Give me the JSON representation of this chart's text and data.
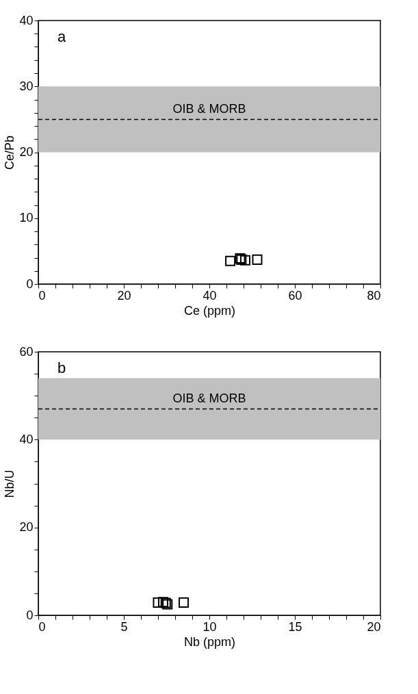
{
  "chart_data": [
    {
      "type": "scatter",
      "annotations": [
        "a"
      ],
      "xlabel": "Ce (ppm)",
      "ylabel": "Ce/Pb",
      "marker": "square",
      "grid": false,
      "series": [
        {
          "color": "#000000",
          "x": [
            44.9,
            47.2,
            47.5,
            48.4,
            51.2
          ],
          "values": [
            3.5,
            3.9,
            3.7,
            3.6,
            3.7
          ]
        }
      ],
      "xlim": [
        0,
        80
      ],
      "ylim": [
        0,
        40
      ],
      "xticks": [
        0,
        {
          "value": 4,
          "label": null
        },
        {
          "value": 8,
          "label": null
        },
        {
          "value": 12,
          "label": null
        },
        {
          "value": 16,
          "label": null
        },
        20,
        {
          "value": 24,
          "label": null
        },
        {
          "value": 28,
          "label": null
        },
        {
          "value": 32,
          "label": null
        },
        {
          "value": 36,
          "label": null
        },
        40,
        {
          "value": 44,
          "label": null
        },
        {
          "value": 48,
          "label": null
        },
        {
          "value": 52,
          "label": null
        },
        {
          "value": 56,
          "label": null
        },
        60,
        {
          "value": 64,
          "label": null
        },
        {
          "value": 68,
          "label": null
        },
        {
          "value": 72,
          "label": null
        },
        {
          "value": 76,
          "label": null
        },
        80
      ],
      "yticks": [
        0,
        {
          "value": 2,
          "label": null
        },
        {
          "value": 4,
          "label": null
        },
        {
          "value": 6,
          "label": null
        },
        {
          "value": 8,
          "label": null
        },
        10,
        {
          "value": 12,
          "label": null
        },
        {
          "value": 14,
          "label": null
        },
        {
          "value": 16,
          "label": null
        },
        {
          "value": 18,
          "label": null
        },
        20,
        {
          "value": 22,
          "label": null
        },
        {
          "value": 24,
          "label": null
        },
        {
          "value": 26,
          "label": null
        },
        {
          "value": 28,
          "label": null
        },
        30,
        {
          "value": 32,
          "label": null
        },
        {
          "value": 34,
          "label": null
        },
        {
          "value": 36,
          "label": null
        },
        {
          "value": 38,
          "label": null
        },
        40
      ],
      "bands": [
        {
          "axis": "y",
          "from": 20,
          "to": 30,
          "label": "OIB & MORB",
          "color": "#c0c0c0"
        }
      ],
      "ref_lines": [
        {
          "axis": "y",
          "value": 25,
          "color": "#000000",
          "line_style": "dashed"
        }
      ]
    },
    {
      "type": "scatter",
      "annotations": [
        "b"
      ],
      "xlabel": "Nb (ppm)",
      "ylabel": "Nb/U",
      "marker": "square",
      "grid": false,
      "series": [
        {
          "color": "#000000",
          "x": [
            7.0,
            7.3,
            7.45,
            7.55,
            8.5
          ],
          "values": [
            2.9,
            3.0,
            2.8,
            2.5,
            2.9
          ]
        }
      ],
      "xlim": [
        0,
        20
      ],
      "ylim": [
        0,
        60
      ],
      "xticks": [
        0,
        {
          "value": 1,
          "label": null
        },
        {
          "value": 2,
          "label": null
        },
        {
          "value": 3,
          "label": null
        },
        {
          "value": 4,
          "label": null
        },
        5,
        {
          "value": 6,
          "label": null
        },
        {
          "value": 7,
          "label": null
        },
        {
          "value": 8,
          "label": null
        },
        {
          "value": 9,
          "label": null
        },
        10,
        {
          "value": 11,
          "label": null
        },
        {
          "value": 12,
          "label": null
        },
        {
          "value": 13,
          "label": null
        },
        {
          "value": 14,
          "label": null
        },
        15,
        {
          "value": 16,
          "label": null
        },
        {
          "value": 17,
          "label": null
        },
        {
          "value": 18,
          "label": null
        },
        {
          "value": 19,
          "label": null
        },
        20
      ],
      "yticks": [
        0,
        {
          "value": 5,
          "label": null
        },
        {
          "value": 10,
          "label": null
        },
        {
          "value": 15,
          "label": null
        },
        20,
        {
          "value": 25,
          "label": null
        },
        {
          "value": 30,
          "label": null
        },
        {
          "value": 35,
          "label": null
        },
        40,
        {
          "value": 45,
          "label": null
        },
        {
          "value": 50,
          "label": null
        },
        {
          "value": 55,
          "label": null
        },
        60
      ],
      "bands": [
        {
          "axis": "y",
          "from": 40,
          "to": 54,
          "label": "OIB & MORB",
          "color": "#c0c0c0"
        }
      ],
      "ref_lines": [
        {
          "axis": "y",
          "value": 47,
          "color": "#000000",
          "line_style": "dashed"
        }
      ]
    }
  ]
}
